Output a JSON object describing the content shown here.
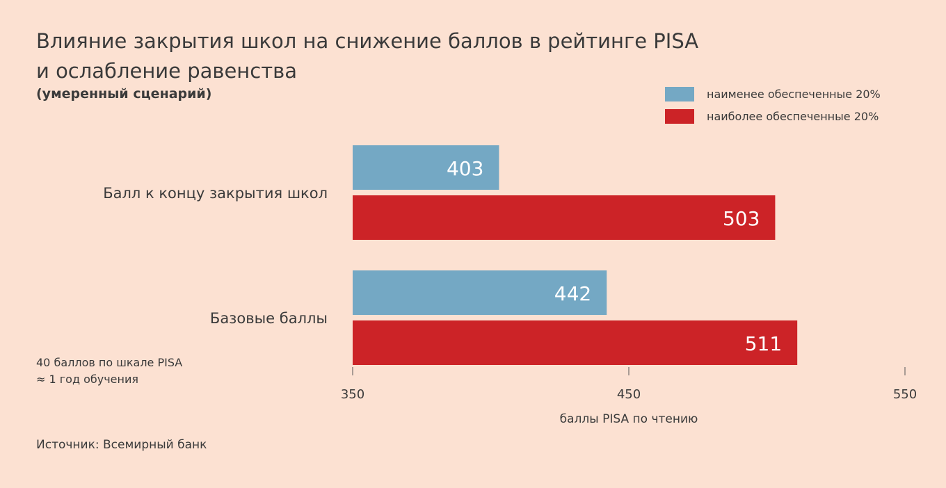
{
  "chart_data": {
    "type": "bar",
    "orientation": "horizontal",
    "title_line1": "Влияние закрытия школ на снижение баллов в рейтинге PISA",
    "title_line2": "и ослабление равенства",
    "subtitle": "(умеренный сценарий)",
    "categories": [
      "Балл к концу закрытия школ",
      "Базовые баллы"
    ],
    "series": [
      {
        "name": "наименее обеспеченные 20%",
        "color": "#74a8c4",
        "values": [
          403,
          442
        ]
      },
      {
        "name": "наиболее обеспеченные 20%",
        "color": "#cc2327",
        "values": [
          503,
          511
        ]
      }
    ],
    "xlabel": "баллы PISA по чтению",
    "xlim": [
      350,
      550
    ],
    "xticks": [
      "350",
      "450",
      "550"
    ],
    "grid": false,
    "legend_position": "top-right",
    "annotation_line1": "40 баллов по шкале PISA",
    "annotation_line2": "≈ 1 год обучения"
  },
  "source": "Источник: Всемирный банк"
}
